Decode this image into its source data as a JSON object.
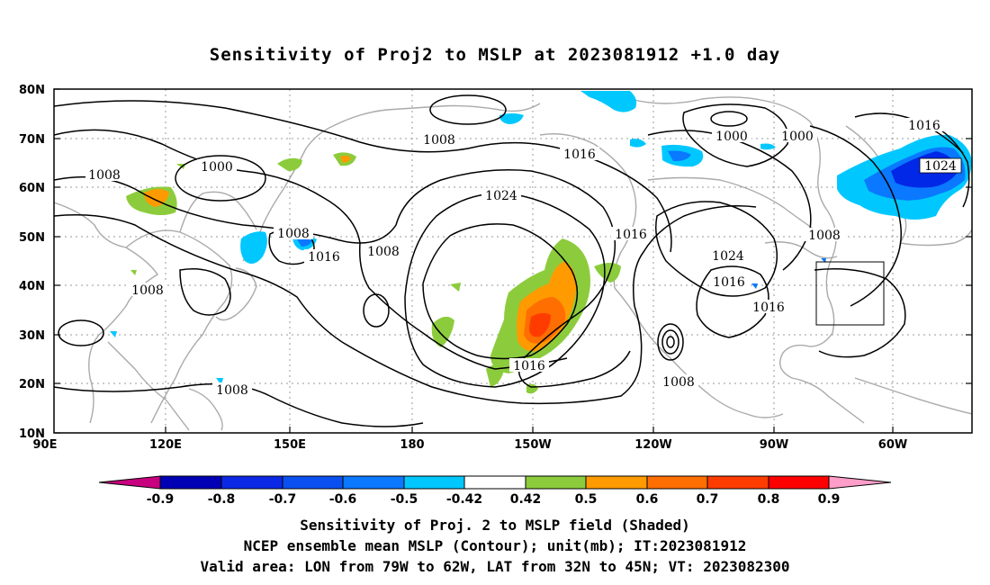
{
  "title": "Sensitivity of Proj2 to MSLP at 2023081912 +1.0 day",
  "map": {
    "lat_labels": [
      "80N",
      "70N",
      "60N",
      "50N",
      "40N",
      "30N",
      "20N",
      "10N"
    ],
    "lon_labels": [
      "90E",
      "120E",
      "150E",
      "180",
      "150W",
      "120W",
      "90W",
      "60W"
    ],
    "contour_labels": [
      {
        "text": "1008"
      },
      {
        "text": "1000"
      },
      {
        "text": "1008"
      },
      {
        "text": "1016"
      },
      {
        "text": "1008"
      },
      {
        "text": "1008"
      },
      {
        "text": "1016"
      },
      {
        "text": "1024"
      },
      {
        "text": "1008"
      },
      {
        "text": "1016"
      },
      {
        "text": "1000"
      },
      {
        "text": "1000"
      },
      {
        "text": "1016"
      },
      {
        "text": "1024"
      },
      {
        "text": "1008"
      },
      {
        "text": "1024"
      },
      {
        "text": "1016"
      },
      {
        "text": "1016"
      },
      {
        "text": "1016"
      },
      {
        "text": "1008"
      },
      {
        "text": "1008"
      }
    ],
    "colors": {
      "contour": "#000000",
      "coast": "#aaaaaa",
      "grid": "#999999",
      "neg_light": "#00c8ff",
      "neg_mid": "#0a78ff",
      "neg_dark": "#0028e6",
      "pos_green": "#8ccc3c",
      "pos_orange": "#ff9a00",
      "pos_dark_orange": "#ff6400",
      "pos_red": "#ff3200"
    }
  },
  "colorbar": {
    "colors": [
      "#c8007f",
      "#0000b4",
      "#0a28e6",
      "#0a50f0",
      "#0a78ff",
      "#00c8ff",
      "#ffffff",
      "#8ccc3c",
      "#ff9a00",
      "#ff6e00",
      "#ff3c00",
      "#ff0000",
      "#ff9ec8"
    ],
    "labels": [
      "-0.9",
      "-0.8",
      "-0.7",
      "-0.6",
      "-0.5",
      "-0.42",
      "0.42",
      "0.5",
      "0.6",
      "0.7",
      "0.8",
      "0.9"
    ]
  },
  "footer": {
    "line1": "Sensitivity of Proj. 2 to MSLP field (Shaded)",
    "line2": "NCEP ensemble mean MSLP (Contour); unit(mb); IT:2023081912",
    "line3": "Valid area: LON from 79W to 62W, LAT from 32N to 45N; VT: 2023082300"
  }
}
